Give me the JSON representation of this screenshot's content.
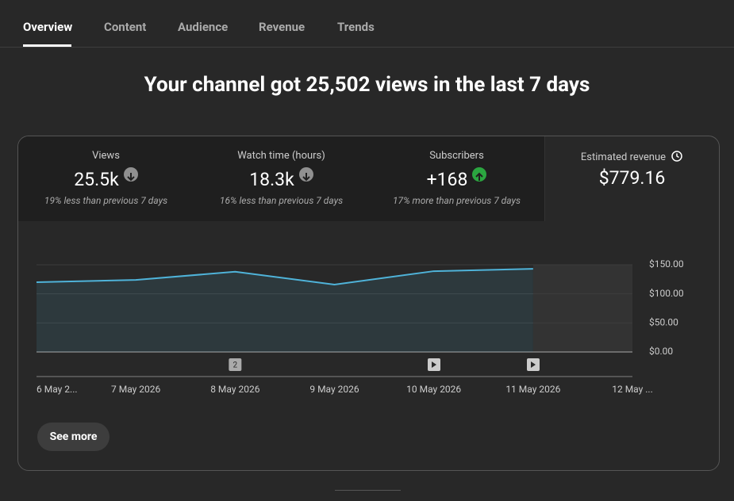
{
  "tabs": [
    "Overview",
    "Content",
    "Audience",
    "Revenue",
    "Trends"
  ],
  "headline": "Your channel got 25,502 views in the last 7 days",
  "metrics": [
    {
      "title": "Views",
      "value": "25.5k",
      "change": "19% less than previous 7 days"
    },
    {
      "title": "Watch time (hours)",
      "value": "18.3k",
      "change": "16% less than previous 7 days"
    },
    {
      "title": "Subscribers",
      "value": "+168",
      "change": "17% more than previous 7 days"
    },
    {
      "title": "Estimated revenue",
      "value": "$779.16"
    }
  ],
  "chart_data": {
    "type": "line",
    "categories": [
      "6 May 2...",
      "7 May 2026",
      "8 May 2026",
      "9 May 2026",
      "10 May 2026",
      "11 May 2026",
      "12 May ..."
    ],
    "series": [
      {
        "name": "Estimated revenue",
        "color": "#4fb3d9",
        "values": [
          120,
          124,
          138,
          116,
          139,
          143,
          null
        ]
      }
    ],
    "ylim": [
      0,
      150
    ],
    "yticks": [
      {
        "value": 0,
        "label": "$0.00"
      },
      {
        "value": 50,
        "label": "$50.00"
      },
      {
        "value": 100,
        "label": "$100.00"
      },
      {
        "value": 150,
        "label": "$150.00"
      }
    ],
    "grid": true,
    "annotations": [
      "2"
    ]
  },
  "button": "See more"
}
